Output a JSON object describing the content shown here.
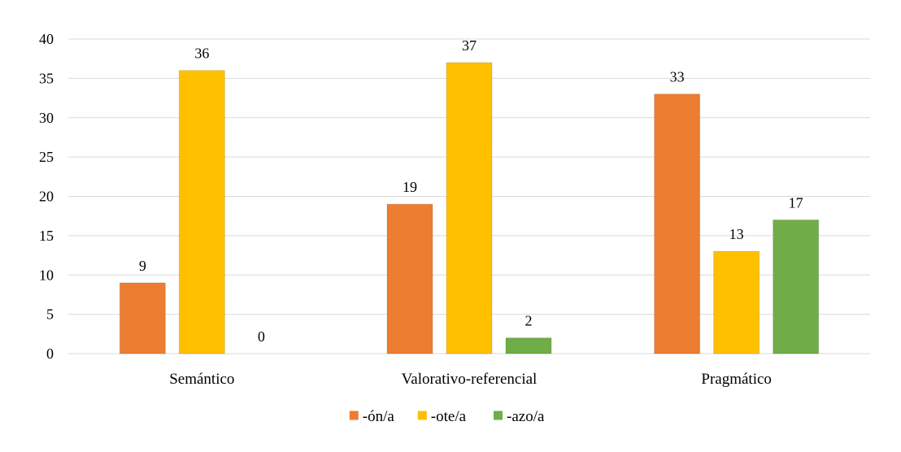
{
  "chart_data": {
    "type": "bar",
    "title": "",
    "xlabel": "",
    "ylabel": "",
    "categories": [
      "Semántico",
      "Valorativo-referencial",
      "Pragmático"
    ],
    "series": [
      {
        "name": "-ón/a",
        "color": "#ED7D31",
        "values": [
          9,
          19,
          33
        ]
      },
      {
        "name": "-ote/a",
        "color": "#FFC000",
        "values": [
          36,
          37,
          13
        ]
      },
      {
        "name": "-azo/a",
        "color": "#70AD47",
        "values": [
          0,
          2,
          17
        ]
      }
    ],
    "ylim": [
      0,
      40
    ],
    "yticks": [
      "0",
      "5",
      "10",
      "15",
      "20",
      "25",
      "30",
      "35",
      "40"
    ],
    "grid": true,
    "legend_position": "bottom"
  }
}
